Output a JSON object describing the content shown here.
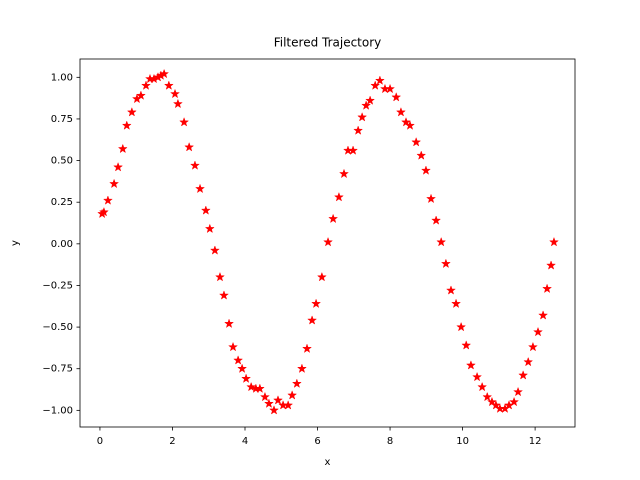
{
  "chart_data": {
    "type": "scatter",
    "title": "Filtered Trajectory",
    "x_label": "x",
    "y_label": "y",
    "marker": "star",
    "color": "#ff0000",
    "xlim": [
      -0.55,
      13.1
    ],
    "ylim": [
      -1.1,
      1.11
    ],
    "xticks": [
      0,
      2,
      4,
      6,
      8,
      10,
      12
    ],
    "yticks": [
      {
        "value": -1,
        "label": "−1.00"
      },
      {
        "value": -0.75,
        "label": "−0.75"
      },
      {
        "value": -0.5,
        "label": "−0.50"
      },
      {
        "value": -0.25,
        "label": "−0.25"
      },
      {
        "value": 0,
        "label": "0.00"
      },
      {
        "value": 0.25,
        "label": "0.25"
      },
      {
        "value": 0.5,
        "label": "0.50"
      },
      {
        "value": 0.75,
        "label": "0.75"
      },
      {
        "value": 1,
        "label": "1.00"
      }
    ],
    "x": [
      0.06,
      0.11,
      0.22,
      0.39,
      0.5,
      0.63,
      0.74,
      0.88,
      1.02,
      1.13,
      1.27,
      1.38,
      1.49,
      1.6,
      1.68,
      1.77,
      1.9,
      2.07,
      2.15,
      2.32,
      2.46,
      2.62,
      2.76,
      2.92,
      3.03,
      3.17,
      3.31,
      3.42,
      3.56,
      3.67,
      3.81,
      3.92,
      4.03,
      4.17,
      4.3,
      4.41,
      4.55,
      4.66,
      4.8,
      4.91,
      5.05,
      5.19,
      5.3,
      5.43,
      5.57,
      5.71,
      5.85,
      5.96,
      6.12,
      6.29,
      6.43,
      6.59,
      6.73,
      6.84,
      6.98,
      7.12,
      7.23,
      7.34,
      7.45,
      7.59,
      7.72,
      7.86,
      8.0,
      8.17,
      8.3,
      8.44,
      8.55,
      8.72,
      8.86,
      8.99,
      9.13,
      9.27,
      9.41,
      9.54,
      9.68,
      9.82,
      9.96,
      10.1,
      10.23,
      10.4,
      10.54,
      10.68,
      10.81,
      10.92,
      11.03,
      11.17,
      11.28,
      11.42,
      11.53,
      11.67,
      11.81,
      11.94,
      12.08,
      12.22,
      12.33,
      12.44,
      12.52
    ],
    "values": [
      0.18,
      0.19,
      0.26,
      0.36,
      0.46,
      0.57,
      0.71,
      0.79,
      0.87,
      0.89,
      0.95,
      0.99,
      0.99,
      1.0,
      1.01,
      1.02,
      0.95,
      0.9,
      0.84,
      0.73,
      0.58,
      0.47,
      0.33,
      0.2,
      0.09,
      -0.04,
      -0.2,
      -0.31,
      -0.48,
      -0.62,
      -0.7,
      -0.75,
      -0.81,
      -0.86,
      -0.87,
      -0.87,
      -0.92,
      -0.96,
      -1.0,
      -0.94,
      -0.97,
      -0.97,
      -0.91,
      -0.84,
      -0.75,
      -0.63,
      -0.46,
      -0.36,
      -0.2,
      0.01,
      0.15,
      0.28,
      0.42,
      0.56,
      0.56,
      0.68,
      0.76,
      0.83,
      0.86,
      0.95,
      0.98,
      0.93,
      0.93,
      0.88,
      0.79,
      0.73,
      0.71,
      0.61,
      0.53,
      0.44,
      0.27,
      0.14,
      0.01,
      -0.12,
      -0.28,
      -0.36,
      -0.5,
      -0.61,
      -0.73,
      -0.8,
      -0.86,
      -0.92,
      -0.95,
      -0.97,
      -0.99,
      -0.99,
      -0.97,
      -0.95,
      -0.89,
      -0.79,
      -0.71,
      -0.62,
      -0.53,
      -0.43,
      -0.27,
      -0.13,
      0.01
    ]
  }
}
